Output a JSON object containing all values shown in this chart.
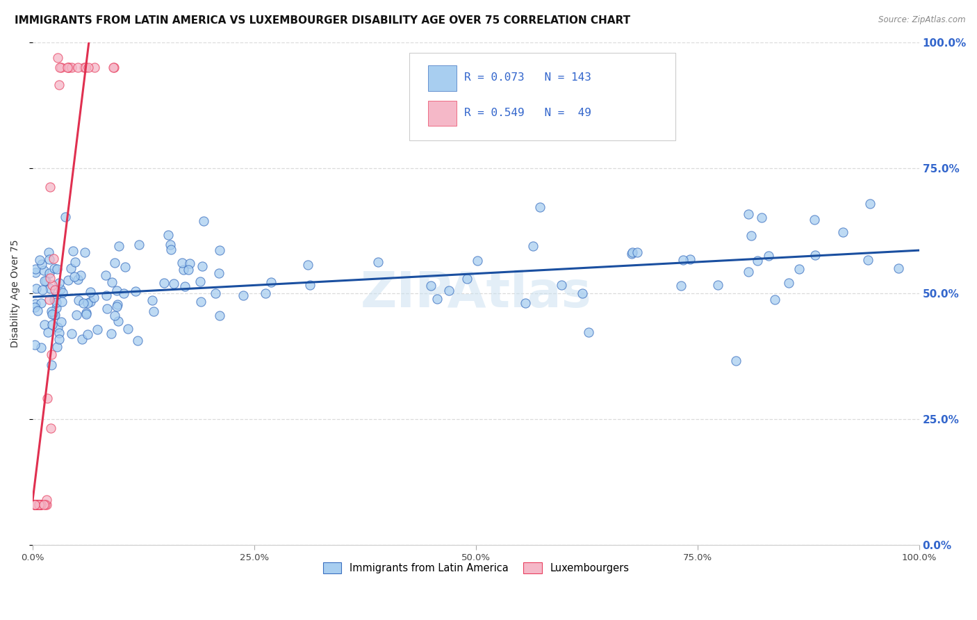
{
  "title": "IMMIGRANTS FROM LATIN AMERICA VS LUXEMBOURGER DISABILITY AGE OVER 75 CORRELATION CHART",
  "source": "Source: ZipAtlas.com",
  "ylabel": "Disability Age Over 75",
  "ytick_labels": [
    "0.0%",
    "25.0%",
    "50.0%",
    "75.0%",
    "100.0%"
  ],
  "ytick_values": [
    0.0,
    0.25,
    0.5,
    0.75,
    1.0
  ],
  "xtick_labels": [
    "0.0%",
    "25.0%",
    "50.0%",
    "75.0%",
    "100.0%"
  ],
  "xtick_values": [
    0.0,
    0.25,
    0.5,
    0.75,
    1.0
  ],
  "xlim": [
    0.0,
    1.0
  ],
  "ylim": [
    0.0,
    1.0
  ],
  "legend_label1": "Immigrants from Latin America",
  "legend_label2": "Luxembourgers",
  "R1": 0.073,
  "N1": 143,
  "R2": 0.549,
  "N2": 49,
  "color_blue_fill": "#a8cef0",
  "color_blue_edge": "#3a6fc0",
  "color_pink_fill": "#f5b8c8",
  "color_pink_edge": "#e84060",
  "color_blue_line": "#1a4fa0",
  "color_pink_line": "#e03050",
  "color_dash": "#d0a0a8",
  "background_color": "#ffffff",
  "grid_color": "#d8d8d8",
  "right_label_color": "#3366cc",
  "watermark_color": "#c8dff0"
}
